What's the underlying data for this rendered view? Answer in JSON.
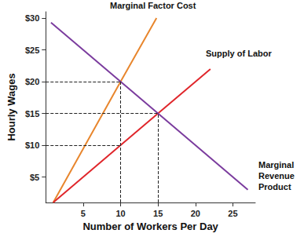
{
  "chart_data": {
    "type": "line",
    "x_label": "Number of Workers Per Day",
    "y_label": "Hourly Wages",
    "xlim": [
      0,
      28
    ],
    "xticks": [
      5,
      10,
      15,
      20,
      25
    ],
    "ylim": [
      1,
      31
    ],
    "yticks": [
      {
        "value": 5,
        "label": "$5"
      },
      {
        "value": 10,
        "label": "$10"
      },
      {
        "value": 15,
        "label": "$15"
      },
      {
        "value": 20,
        "label": "$20"
      },
      {
        "value": 25,
        "label": "$25"
      },
      {
        "value": 30,
        "label": "$30"
      }
    ],
    "grid": false,
    "series": [
      {
        "name": "Marginal Factor Cost",
        "color": "#e8862d",
        "x": [
          1,
          10,
          14.8
        ],
        "values": [
          1,
          20,
          30
        ]
      },
      {
        "name": "Supply of Labor",
        "color": "#e0262b",
        "x": [
          1,
          10,
          15,
          22
        ],
        "values": [
          1,
          10,
          15,
          22
        ]
      },
      {
        "name": "Marginal Revenue Product",
        "color": "#7b3c9e",
        "x": [
          0.7,
          10,
          15,
          27
        ],
        "values": [
          29.3,
          20,
          15,
          3
        ]
      }
    ],
    "guides": {
      "line_style": "dashed",
      "points": [
        [
          10,
          20
        ],
        [
          10,
          10
        ],
        [
          15,
          15
        ]
      ]
    }
  }
}
